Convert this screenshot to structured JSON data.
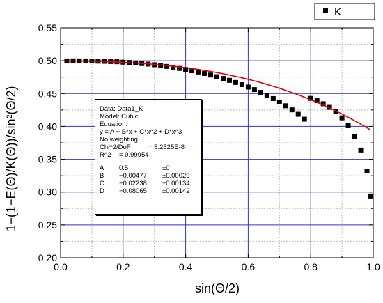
{
  "chart_data": {
    "type": "scatter",
    "xlabel": "sin(Θ/2)",
    "ylabel": "1−(1−E(Θ)/K(Θ))/sin²(Θ/2)",
    "xlim": [
      0.0,
      1.0
    ],
    "ylim": [
      0.2,
      0.55
    ],
    "xticks": [
      "0.0",
      "0.2",
      "0.4",
      "0.6",
      "0.8",
      "1.0"
    ],
    "yticks": [
      "0.20",
      "0.25",
      "0.30",
      "0.35",
      "0.40",
      "0.45",
      "0.50",
      "0.55"
    ],
    "grid": true,
    "legend": {
      "position": "top-right",
      "label": "K"
    },
    "series": [
      {
        "name": "K",
        "marker": "square",
        "color": "#000000",
        "x": [
          0.02,
          0.04,
          0.06,
          0.08,
          0.1,
          0.12,
          0.14,
          0.16,
          0.18,
          0.2,
          0.22,
          0.24,
          0.26,
          0.28,
          0.3,
          0.32,
          0.34,
          0.36,
          0.38,
          0.4,
          0.42,
          0.44,
          0.46,
          0.48,
          0.5,
          0.52,
          0.54,
          0.56,
          0.58,
          0.6,
          0.62,
          0.64,
          0.66,
          0.68,
          0.7,
          0.72,
          0.74,
          0.76,
          0.78,
          0.8,
          0.82,
          0.84,
          0.86,
          0.88,
          0.9,
          0.92,
          0.94,
          0.96,
          0.98,
          0.99
        ],
        "y": [
          0.4997,
          0.4998,
          0.4998,
          0.4997,
          0.4996,
          0.4993,
          0.4991,
          0.4987,
          0.4984,
          0.4978,
          0.4973,
          0.4966,
          0.4957,
          0.4949,
          0.4938,
          0.4927,
          0.4913,
          0.49,
          0.4883,
          0.4867,
          0.4848,
          0.4828,
          0.4806,
          0.4782,
          0.4757,
          0.473,
          0.4701,
          0.4669,
          0.4635,
          0.4599,
          0.456,
          0.4518,
          0.4473,
          0.4424,
          0.4371,
          0.4314,
          0.4252,
          0.4184,
          0.411,
          0.4427,
          0.4391,
          0.4345,
          0.429,
          0.4222,
          0.413,
          0.401,
          0.385,
          0.364,
          0.332,
          0.294
        ]
      }
    ],
    "fit": {
      "name": "Cubic fit",
      "color": "#e00000",
      "A": 0.5,
      "B": -0.00477,
      "C": -0.02238,
      "D": -0.08065,
      "x_range": [
        0.02,
        0.99
      ]
    }
  },
  "fit_box": {
    "data": "Data: Data1_K",
    "model": "Model: Cubic",
    "equation_label": "Equation:",
    "equation": "y = A + B*x + C*x^2 + D*x^3",
    "weighting": "No weighting",
    "chi2_label": "Chi^2/DoF",
    "chi2_value": "= 5.2525E-8",
    "r2_label": "R^2",
    "r2_value": "=  0.99954",
    "params": [
      {
        "name": "A",
        "value": "0.5",
        "error": "±0"
      },
      {
        "name": "B",
        "value": "−0.00477",
        "error": "±0.00029"
      },
      {
        "name": "C",
        "value": "−0.02238",
        "error": "±0.00134"
      },
      {
        "name": "D",
        "value": "−0.08065",
        "error": "±0.00142"
      }
    ]
  }
}
